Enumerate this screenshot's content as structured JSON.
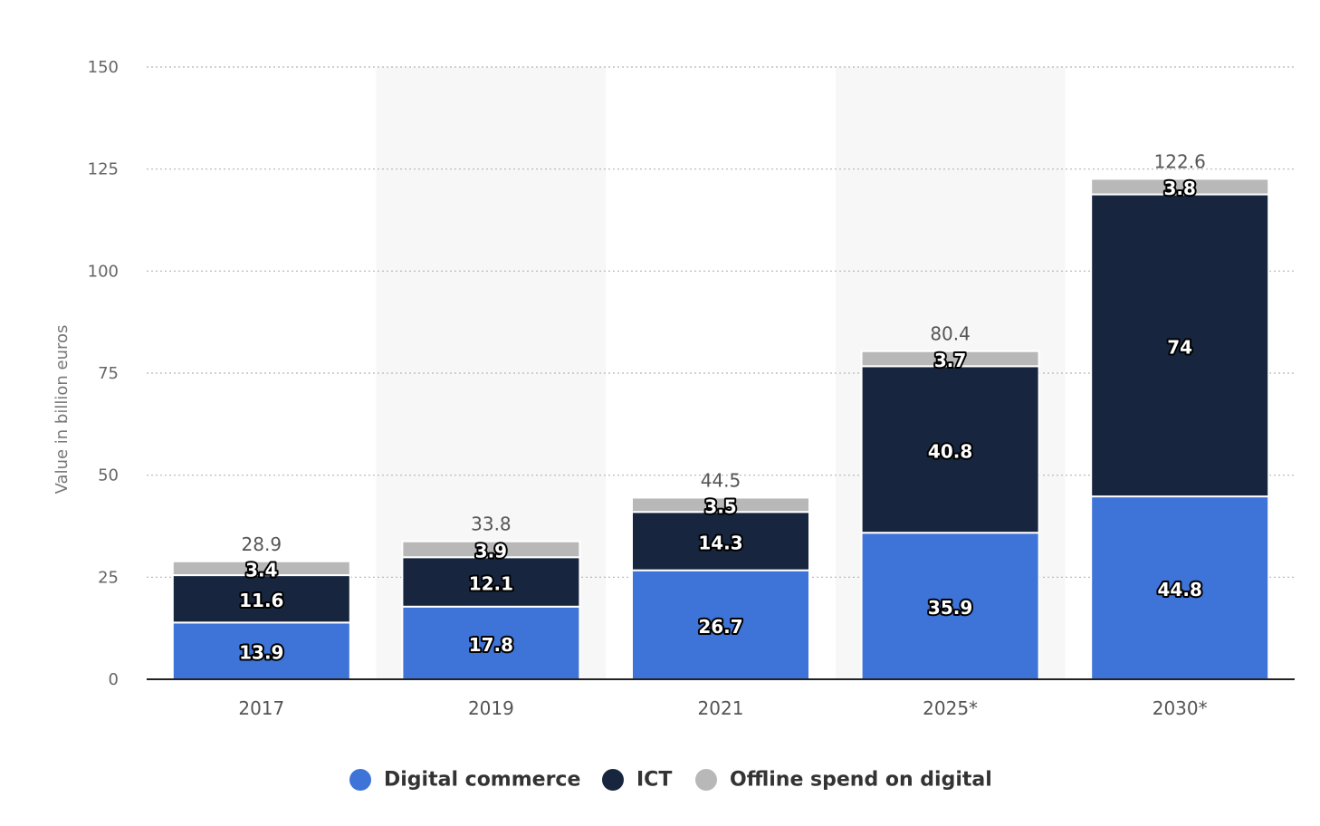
{
  "chart_data": {
    "type": "bar",
    "stacked": true,
    "categories": [
      "2017",
      "2019",
      "2021",
      "2025*",
      "2030*"
    ],
    "series": [
      {
        "name": "Digital commerce",
        "color": "#3e73d8",
        "values": [
          13.9,
          17.8,
          26.7,
          35.9,
          44.8
        ]
      },
      {
        "name": "ICT",
        "color": "#17263e",
        "values": [
          11.6,
          12.1,
          14.3,
          40.8,
          74
        ]
      },
      {
        "name": "Offline spend on digital",
        "color": "#b8b8b8",
        "values": [
          3.4,
          3.9,
          3.5,
          3.7,
          3.8
        ]
      }
    ],
    "totals": [
      "28.9",
      "33.8",
      "44.5",
      "80.4",
      "122.6"
    ],
    "ylabel": "Value in billion euros",
    "ylim": [
      0,
      150
    ],
    "yticks": [
      0,
      25,
      50,
      75,
      100,
      125,
      150
    ],
    "grid": true,
    "legend_position": "bottom"
  }
}
